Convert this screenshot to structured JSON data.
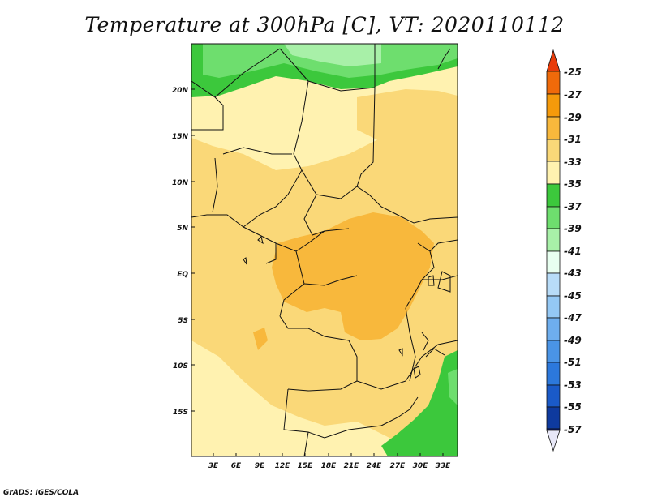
{
  "title": "Temperature at 300hPa [C], VT: 2020110112",
  "credit": "GrADS: IGES/COLA",
  "map": {
    "lon_labels": [
      "3E",
      "6E",
      "9E",
      "12E",
      "15E",
      "18E",
      "21E",
      "24E",
      "27E",
      "30E",
      "33E"
    ],
    "lat_labels": [
      "20N",
      "15N",
      "10N",
      "5N",
      "EQ",
      "5S",
      "10S",
      "15S"
    ]
  },
  "colorbar": {
    "labels": [
      "-25",
      "-27",
      "-29",
      "-31",
      "-33",
      "-35",
      "-37",
      "-39",
      "-41",
      "-43",
      "-45",
      "-47",
      "-49",
      "-51",
      "-53",
      "-55",
      "-57"
    ],
    "colors": {
      "top_arrow": "#e83c0a",
      "-25_-27": "#f06a0a",
      "-27_-29": "#f59a0b",
      "-29_-31": "#f8b83c",
      "-31_-33": "#fad878",
      "-33_-35": "#fff2b0",
      "-35_-37": "#3cc83c",
      "-37_-39": "#6ede6e",
      "-39_-41": "#a8f0a8",
      "-41_-43": "#e8fff0",
      "-43_-45": "#b8dcf8",
      "-45_-47": "#94c8f4",
      "-47_-49": "#6eaeee",
      "-49_-51": "#4a94e6",
      "-51_-53": "#2c78dc",
      "-53_-55": "#1a5ac8",
      "-55_-57": "#0e3a9e",
      "bottom_arrow": "#0a1a6e",
      "below_bottom": "#e8e8f8"
    }
  }
}
